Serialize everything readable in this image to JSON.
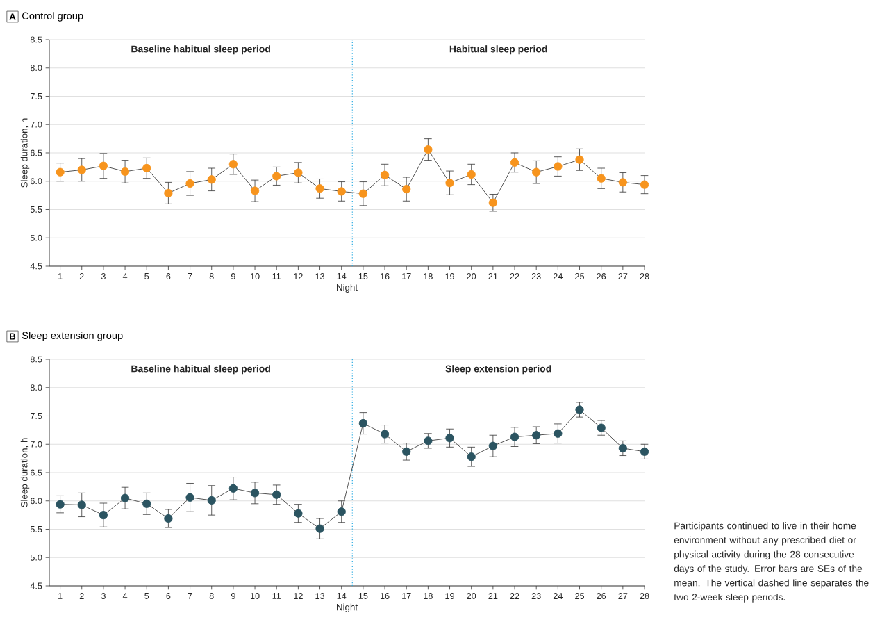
{
  "chart_data": [
    {
      "type": "line",
      "title": "Control group",
      "xlabel": "Night",
      "ylabel": "Sleep duration, h",
      "annotations": [
        "A",
        "Baseline habitual sleep period",
        "Habitual sleep period"
      ],
      "x": [
        1,
        2,
        3,
        4,
        5,
        6,
        7,
        8,
        9,
        10,
        11,
        12,
        13,
        14,
        15,
        16,
        17,
        18,
        19,
        20,
        21,
        22,
        23,
        24,
        25,
        26,
        27,
        28
      ],
      "series": [
        {
          "color": "#f7941d",
          "values": [
            6.16,
            6.2,
            6.27,
            6.17,
            6.23,
            5.79,
            5.96,
            6.03,
            6.3,
            5.83,
            6.09,
            6.15,
            5.87,
            5.82,
            5.78,
            6.11,
            5.86,
            6.56,
            5.97,
            6.12,
            5.62,
            6.33,
            6.16,
            6.26,
            6.38,
            6.05,
            5.98,
            5.94
          ],
          "errors": [
            0.16,
            0.2,
            0.22,
            0.2,
            0.18,
            0.19,
            0.21,
            0.2,
            0.18,
            0.19,
            0.16,
            0.18,
            0.17,
            0.17,
            0.21,
            0.19,
            0.21,
            0.19,
            0.21,
            0.18,
            0.15,
            0.17,
            0.2,
            0.17,
            0.19,
            0.18,
            0.17,
            0.16
          ]
        }
      ],
      "xlim": [
        0.5,
        28
      ],
      "ylim": [
        4.5,
        8.5
      ],
      "xticks": [
        1,
        2,
        3,
        4,
        5,
        6,
        7,
        8,
        9,
        10,
        11,
        12,
        13,
        14,
        15,
        16,
        17,
        18,
        19,
        20,
        21,
        22,
        23,
        24,
        25,
        26,
        27,
        28
      ],
      "yticks": [
        {
          "value": 4.5,
          "label": "4.5"
        },
        {
          "value": 5,
          "label": "5.0"
        },
        {
          "value": 5.5,
          "label": "5.5"
        },
        {
          "value": 6,
          "label": "6.0"
        },
        {
          "value": 6.5,
          "label": "6.5"
        },
        {
          "value": 7,
          "label": "7.0"
        },
        {
          "value": 7.5,
          "label": "7.5"
        },
        {
          "value": 8,
          "label": "8.0"
        },
        {
          "value": 8.5,
          "label": "8.5"
        }
      ],
      "grid": "y",
      "marker": "circle",
      "line_style": "solid",
      "ref_lines": [
        {
          "axis": "x",
          "value": 14.5,
          "color": "#29abe2",
          "line_style": "dotted"
        }
      ]
    },
    {
      "type": "line",
      "title": "Sleep extension group",
      "xlabel": "Night",
      "ylabel": "Sleep duration, h",
      "annotations": [
        "B",
        "Baseline habitual sleep period",
        "Sleep extension period",
        "Participants continued to live in their home environment without any prescribed diet or physical activity during the 28 consecutive days of the study. Error bars are SEs of the mean. The vertical dashed line separates the two 2-week sleep periods."
      ],
      "x": [
        1,
        2,
        3,
        4,
        5,
        6,
        7,
        8,
        9,
        10,
        11,
        12,
        13,
        14,
        15,
        16,
        17,
        18,
        19,
        20,
        21,
        22,
        23,
        24,
        25,
        26,
        27,
        28
      ],
      "series": [
        {
          "color": "#2b5461",
          "values": [
            5.94,
            5.93,
            5.75,
            6.05,
            5.95,
            5.69,
            6.06,
            6.01,
            6.22,
            6.14,
            6.11,
            5.78,
            5.51,
            5.81,
            7.37,
            7.18,
            6.87,
            7.06,
            7.11,
            6.78,
            6.97,
            7.13,
            7.16,
            7.19,
            7.61,
            7.29,
            6.93,
            6.87
          ],
          "errors": [
            0.15,
            0.21,
            0.21,
            0.19,
            0.19,
            0.16,
            0.25,
            0.26,
            0.2,
            0.19,
            0.17,
            0.16,
            0.18,
            0.19,
            0.19,
            0.16,
            0.15,
            0.13,
            0.16,
            0.17,
            0.19,
            0.17,
            0.15,
            0.17,
            0.13,
            0.13,
            0.13,
            0.13
          ]
        }
      ],
      "xlim": [
        0.5,
        28
      ],
      "ylim": [
        4.5,
        8.5
      ],
      "xticks": [
        1,
        2,
        3,
        4,
        5,
        6,
        7,
        8,
        9,
        10,
        11,
        12,
        13,
        14,
        15,
        16,
        17,
        18,
        19,
        20,
        21,
        22,
        23,
        24,
        25,
        26,
        27,
        28
      ],
      "yticks": [
        {
          "value": 4.5,
          "label": "4.5"
        },
        {
          "value": 5,
          "label": "5.0"
        },
        {
          "value": 5.5,
          "label": "5.5"
        },
        {
          "value": 6,
          "label": "6.0"
        },
        {
          "value": 6.5,
          "label": "6.5"
        },
        {
          "value": 7,
          "label": "7.0"
        },
        {
          "value": 7.5,
          "label": "7.5"
        },
        {
          "value": 8,
          "label": "8.0"
        },
        {
          "value": 8.5,
          "label": "8.5"
        }
      ],
      "grid": "y",
      "marker": "circle",
      "line_style": "solid",
      "ref_lines": [
        {
          "axis": "x",
          "value": 14.5,
          "color": "#29abe2",
          "line_style": "dotted"
        }
      ]
    }
  ]
}
